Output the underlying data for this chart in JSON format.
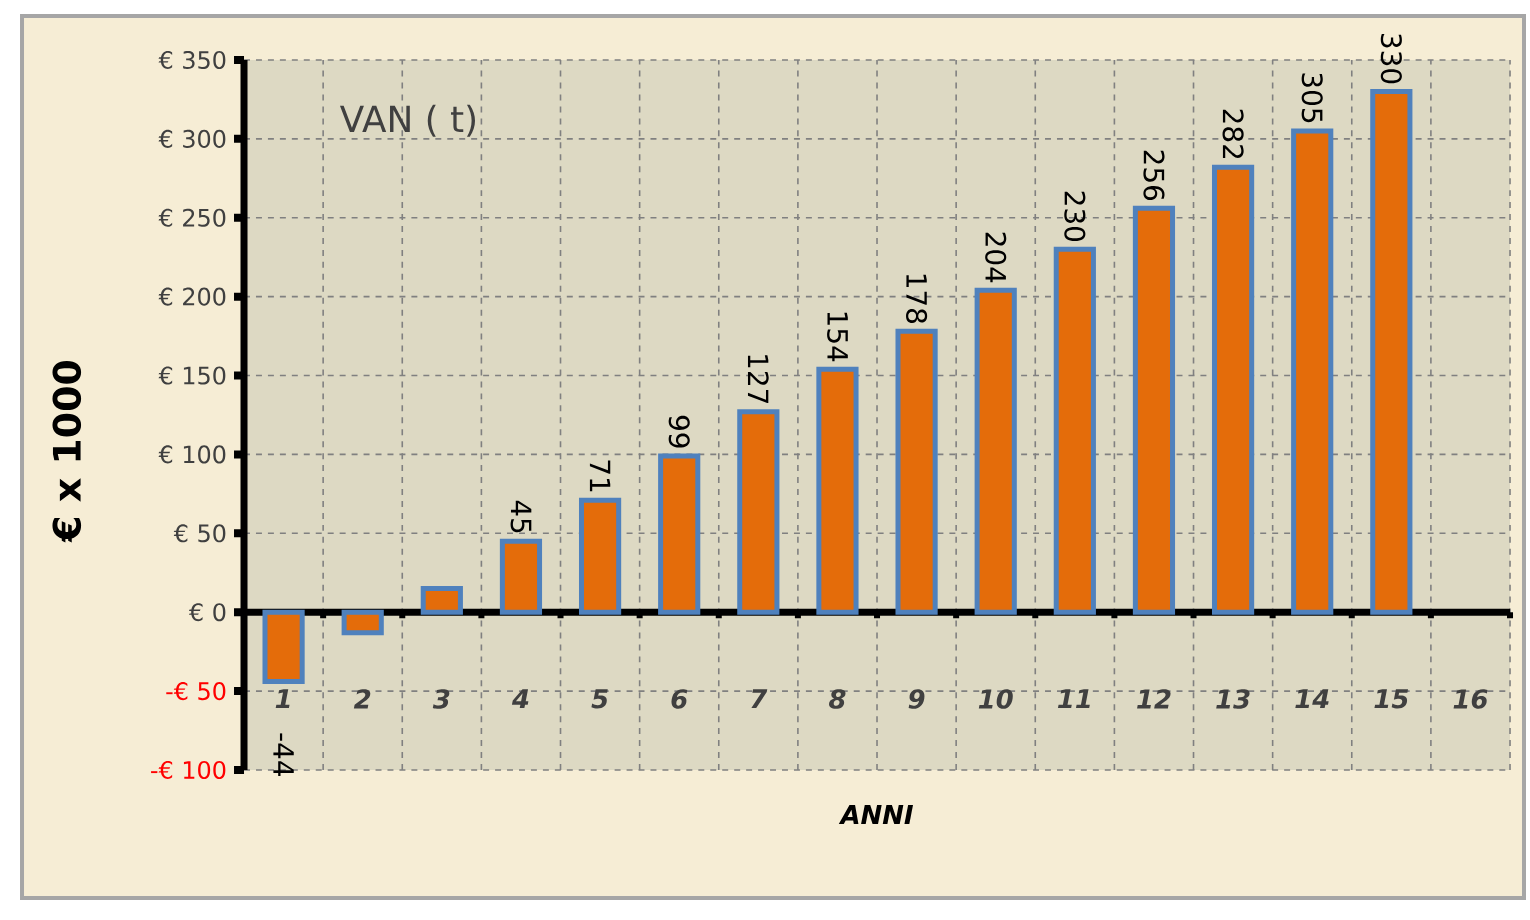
{
  "chart_data": {
    "type": "bar",
    "title": "VAN  ( t)",
    "xlabel": "ANNI",
    "ylabel": "€ x 1000",
    "categories": [
      "1",
      "2",
      "3",
      "4",
      "5",
      "6",
      "7",
      "8",
      "9",
      "10",
      "11",
      "12",
      "13",
      "14",
      "15",
      "16"
    ],
    "values": [
      -44,
      -13,
      15,
      45,
      71,
      99,
      127,
      154,
      178,
      204,
      230,
      256,
      282,
      305,
      330,
      null
    ],
    "value_labels": [
      "-44",
      null,
      null,
      "45",
      "71",
      "99",
      "127",
      "154",
      "178",
      "204",
      "230",
      "256",
      "282",
      "305",
      "330",
      null
    ],
    "color": "#e46c0a",
    "ylim": [
      -100,
      350
    ],
    "yticks": [
      {
        "value": -100,
        "label": "-€ 100"
      },
      {
        "value": -50,
        "label": "-€ 50"
      },
      {
        "value": 0,
        "label": "€ 0"
      },
      {
        "value": 50,
        "label": "€ 50"
      },
      {
        "value": 100,
        "label": "€ 100"
      },
      {
        "value": 150,
        "label": "€ 150"
      },
      {
        "value": 200,
        "label": "€ 200"
      },
      {
        "value": 250,
        "label": "€ 250"
      },
      {
        "value": 300,
        "label": "€ 300"
      },
      {
        "value": 350,
        "label": "€ 350"
      }
    ],
    "grid": true
  }
}
